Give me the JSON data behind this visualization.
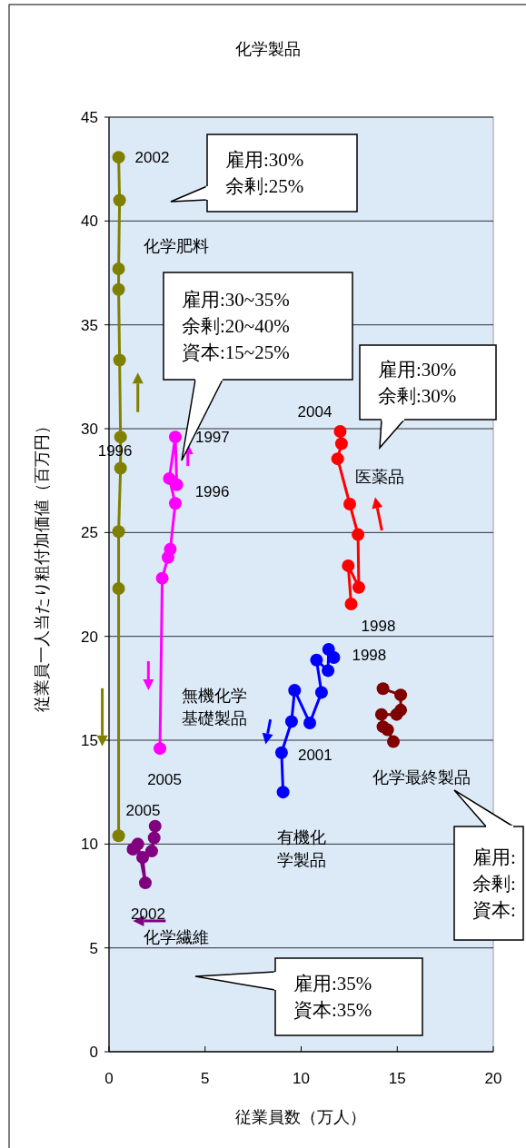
{
  "chart_data": {
    "type": "line",
    "title": "化学製品",
    "xlabel": "従業員数（万人）",
    "ylabel": "従業員一人当たり粗付加価値（百万円）",
    "xlim": [
      0,
      20
    ],
    "xticks": [
      0,
      5,
      10,
      15,
      20
    ],
    "ylim": [
      0,
      45
    ],
    "yticks": [
      0,
      5,
      10,
      15,
      20,
      25,
      30,
      35,
      40,
      45
    ],
    "grid": "y",
    "marker": "circle",
    "line_style": "solid",
    "series": [
      {
        "name": "化学肥料",
        "color": "#808000",
        "x": [
          0.5,
          0.55,
          0.5,
          0.5,
          0.55,
          0.6,
          0.6,
          0.5,
          0.5,
          0.5
        ],
        "values": [
          43.07,
          41.0,
          37.7,
          36.7,
          33.3,
          29.6,
          28.1,
          25.05,
          22.3,
          10.4
        ]
      },
      {
        "name": "無機化学基礎製品",
        "color": "#ff00ff",
        "x": [
          3.53,
          3.45,
          3.14,
          3.45,
          3.19,
          3.07,
          2.77,
          2.65
        ],
        "values": [
          27.3,
          29.6,
          27.6,
          26.4,
          24.2,
          23.8,
          22.8,
          14.6
        ]
      },
      {
        "name": "化学繊維",
        "color": "#800080",
        "x": [
          2.4,
          2.35,
          2.22,
          1.75,
          1.89,
          1.5,
          1.25
        ],
        "values": [
          10.86,
          10.3,
          9.66,
          9.36,
          8.13,
          10.0,
          9.75
        ]
      },
      {
        "name": "医薬品",
        "color": "#ff0000",
        "x": [
          12.6,
          12.45,
          13.0,
          12.96,
          12.53,
          11.9,
          12.1,
          12.03
        ],
        "values": [
          21.56,
          23.4,
          22.36,
          24.9,
          26.37,
          28.55,
          29.28,
          29.87
        ]
      },
      {
        "name": "有機化学製品",
        "color": "#0000ff",
        "x": [
          11.7,
          11.43,
          11.4,
          10.8,
          11.06,
          10.45,
          9.66,
          9.5,
          8.98,
          9.06
        ],
        "values": [
          18.98,
          19.37,
          18.35,
          18.86,
          17.3,
          15.83,
          17.4,
          15.9,
          14.4,
          12.5
        ]
      },
      {
        "name": "化学最終製品",
        "color": "#800000",
        "x": [
          14.26,
          15.18,
          15.18,
          14.97,
          14.18,
          14.26,
          14.5,
          14.8
        ],
        "values": [
          17.48,
          17.18,
          16.45,
          16.24,
          16.24,
          15.65,
          15.5,
          14.93
        ]
      }
    ],
    "annotations": [
      {
        "text": "2002",
        "x": 0.5,
        "y": 43.07
      },
      {
        "text": "1996",
        "x": 0.55,
        "y": 29.6
      },
      {
        "text": "2005",
        "x": 0.5,
        "y": 10.4
      },
      {
        "text": "1997",
        "x": 3.45,
        "y": 29.6
      },
      {
        "text": "1996",
        "x": 3.53,
        "y": 27.3
      },
      {
        "text": "2005",
        "x": 2.65,
        "y": 14.6
      },
      {
        "text": "2002",
        "x": 1.89,
        "y": 8.13
      },
      {
        "text": "2004",
        "x": 12.03,
        "y": 29.87
      },
      {
        "text": "1998",
        "x": 12.6,
        "y": 21.56
      },
      {
        "text": "1998",
        "x": 11.7,
        "y": 18.98
      },
      {
        "text": "2001",
        "x": 8.98,
        "y": 14.4
      },
      "雇用:30%\n余剰:25%",
      "雇用:30~35%\n余剰:20~40%\n資本:15~25%",
      "雇用:30%\n余剰:30%",
      "雇用:\n余剰:\n資本:",
      "雇用:35%\n資本:35%"
    ]
  }
}
